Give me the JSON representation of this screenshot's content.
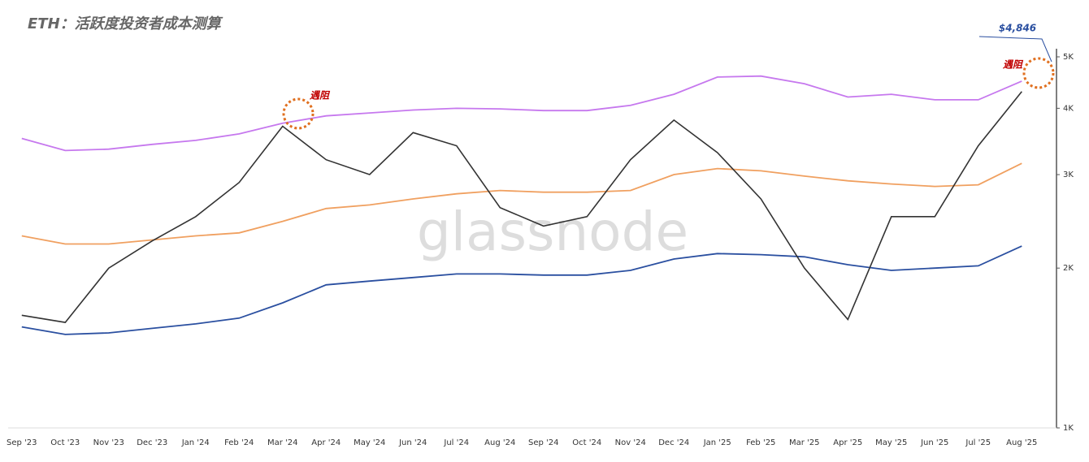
{
  "chart_data": {
    "type": "line",
    "title": "ETH：活跃度投资者成本测算",
    "watermark": "glassnode",
    "categories": [
      "Sep '23",
      "Oct '23",
      "Nov '23",
      "Dec '23",
      "Jan '24",
      "Feb '24",
      "Mar '24",
      "Apr '24",
      "May '24",
      "Jun '24",
      "Jul '24",
      "Aug '24",
      "Sep '24",
      "Oct '24",
      "Nov '24",
      "Dec '24",
      "Jan '25",
      "Feb '25",
      "Mar '25",
      "Apr '25",
      "May '25",
      "Jun '25",
      "Jul '25",
      "Aug '25"
    ],
    "series": [
      {
        "color": "#c678ee",
        "values": [
          3510,
          3330,
          3350,
          3420,
          3480,
          3580,
          3750,
          3870,
          3920,
          3970,
          4000,
          3990,
          3960,
          3960,
          4050,
          4250,
          4580,
          4600,
          4450,
          4200,
          4250,
          4150,
          4150,
          4500
        ]
      },
      {
        "color": "#f0a060",
        "values": [
          2300,
          2220,
          2220,
          2260,
          2300,
          2330,
          2450,
          2590,
          2630,
          2700,
          2760,
          2800,
          2780,
          2780,
          2800,
          3000,
          3080,
          3050,
          2980,
          2920,
          2880,
          2850,
          2870,
          3150
        ]
      },
      {
        "color": "#2a4fa0",
        "values": [
          1550,
          1500,
          1510,
          1540,
          1570,
          1610,
          1720,
          1860,
          1890,
          1920,
          1950,
          1950,
          1940,
          1940,
          1980,
          2080,
          2130,
          2120,
          2100,
          2030,
          1980,
          2000,
          2020,
          2200
        ]
      },
      {
        "color": "#333333",
        "values": [
          1630,
          1580,
          2000,
          2250,
          2500,
          2900,
          3700,
          3200,
          3000,
          3600,
          3400,
          2600,
          2400,
          2500,
          3200,
          3800,
          3300,
          2700,
          2000,
          1600,
          2500,
          2500,
          3400,
          4300
        ]
      }
    ],
    "ylim": [
      1000,
      5000
    ],
    "log_scale": true,
    "yticks": [
      {
        "value": 1000,
        "label": "1K"
      },
      {
        "value": 2000,
        "label": "2K"
      },
      {
        "value": 3000,
        "label": "3K"
      },
      {
        "value": 4000,
        "label": "4K"
      },
      {
        "value": 5000,
        "label": "5K"
      }
    ],
    "annotations": [
      "遇阻",
      "遇阻",
      "$4,846"
    ]
  }
}
